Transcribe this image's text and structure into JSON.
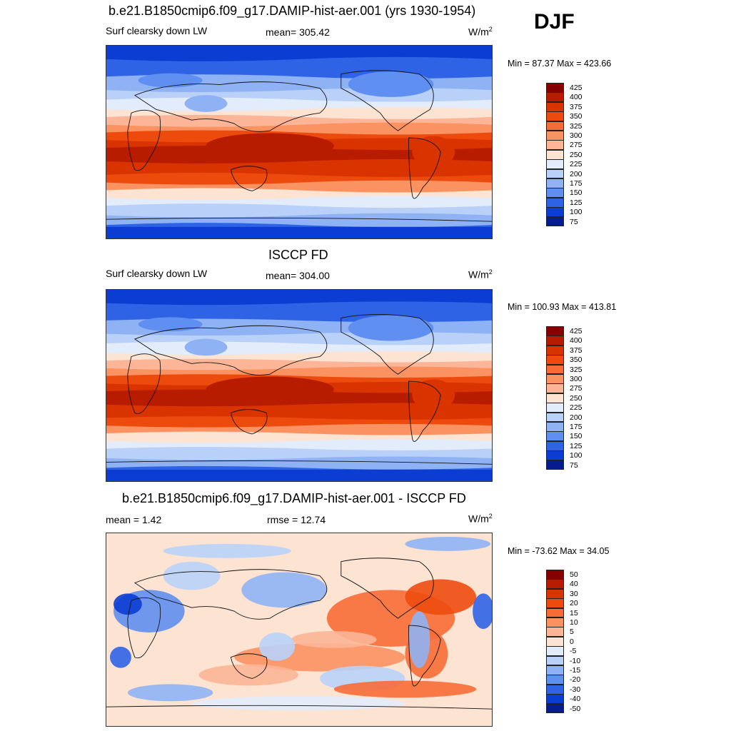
{
  "season": "DJF",
  "panels": [
    {
      "title": "b.e21.B1850cmip6.f09_g17.DAMIP-hist-aer.001 (yrs 1930-1954)",
      "left_label": "Surf clearsky down LW",
      "center_label": "mean= 305.42",
      "units": "W/m",
      "units_sup": "2",
      "minmax": "Min =  87.37 Max = 423.66",
      "kind": "model"
    },
    {
      "title": "ISCCP FD",
      "left_label": "Surf clearsky down LW",
      "center_label": "mean= 304.00",
      "units": "W/m",
      "units_sup": "2",
      "minmax": "Min = 100.93 Max = 413.81",
      "kind": "obs"
    },
    {
      "title": "b.e21.B1850cmip6.f09_g17.DAMIP-hist-aer.001 - ISCCP FD",
      "left_label": "mean =   1.42",
      "center_label": "rmse =  12.74",
      "units": "W/m",
      "units_sup": "2",
      "minmax": "Min = -73.62 Max =  34.05",
      "kind": "diff"
    }
  ],
  "colorbars": {
    "abs": {
      "labels": [
        "425",
        "400",
        "375",
        "350",
        "325",
        "300",
        "275",
        "250",
        "225",
        "200",
        "175",
        "150",
        "125",
        "100",
        "75"
      ],
      "colors": [
        "#870000",
        "#b81c00",
        "#d93300",
        "#ed4b0e",
        "#f76c36",
        "#fb9262",
        "#fcb597",
        "#fde3d2",
        "#e2ecfb",
        "#b9d1f9",
        "#8fb2f4",
        "#5f8ff0",
        "#2f63e6",
        "#0c3dd3",
        "#041c8e"
      ]
    },
    "diff": {
      "labels": [
        "50",
        "40",
        "30",
        "20",
        "15",
        "10",
        "5",
        "0",
        "-5",
        "-10",
        "-15",
        "-20",
        "-30",
        "-40",
        "-50"
      ],
      "colors": [
        "#870000",
        "#b81c00",
        "#d93300",
        "#ed4b0e",
        "#f76c36",
        "#fb9262",
        "#fcb597",
        "#fde3d2",
        "#e2ecfb",
        "#b9d1f9",
        "#8fb2f4",
        "#5f8ff0",
        "#2f63e6",
        "#0c3dd3",
        "#041c8e"
      ]
    }
  }
}
